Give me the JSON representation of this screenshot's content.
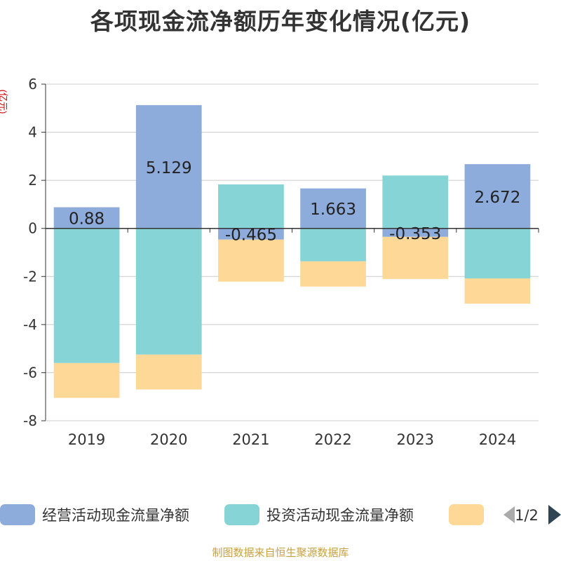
{
  "title": "各项现金流净额历年变化情况(亿元)",
  "footer": "制图数据来自恒生聚源数据库",
  "legend_page": "1/2",
  "chart_data": {
    "type": "bar",
    "stacked": true,
    "title": "各项现金流净额历年变化情况(亿元)",
    "ylabel": "(亿元)",
    "xlabel": "",
    "ylim": [
      -8,
      6
    ],
    "yticks": [
      6,
      4,
      2,
      0,
      -2,
      -4,
      -6,
      -8
    ],
    "grid": true,
    "legend_position": "bottom",
    "categories": [
      "2019",
      "2020",
      "2021",
      "2022",
      "2023",
      "2024"
    ],
    "series": [
      {
        "name": "经营活动现金流量净额",
        "color": "#8eacdb",
        "values": [
          0.88,
          5.129,
          -0.465,
          1.663,
          -0.353,
          2.672
        ],
        "labels": [
          "0.88",
          "5.129",
          "-0.465",
          "1.663",
          "-0.353",
          "2.672"
        ]
      },
      {
        "name": "投资活动现金流量净额",
        "color": "#87d4d6",
        "values": [
          -5.6,
          -5.25,
          1.83,
          -1.37,
          2.2,
          -2.08
        ]
      },
      {
        "name": "",
        "color": "#fed897",
        "values": [
          -1.45,
          -1.45,
          -1.75,
          -1.05,
          -1.75,
          -1.05
        ]
      }
    ]
  }
}
